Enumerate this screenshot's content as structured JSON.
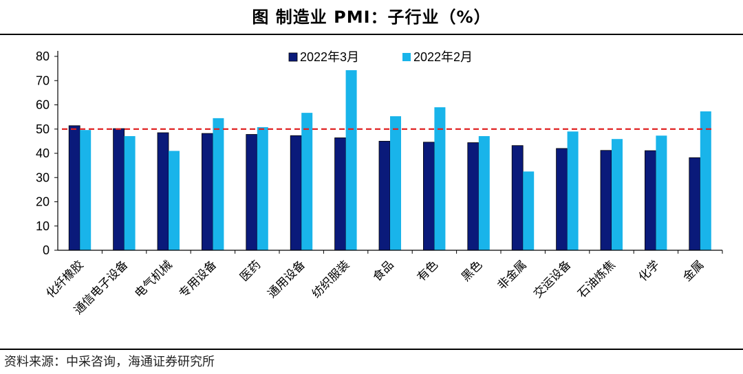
{
  "header": {
    "title": "图  制造业 PMI：子行业（%）"
  },
  "footer": {
    "source": "资料来源：中采咨询，海通证券研究所"
  },
  "chart_data": {
    "type": "bar",
    "title": "图  制造业 PMI：子行业（%）",
    "categories": [
      "化纤橡胶",
      "通信电子设备",
      "电气机械",
      "专用设备",
      "医药",
      "通用设备",
      "纺织服装",
      "食品",
      "有色",
      "黑色",
      "非金属",
      "交运设备",
      "石油炼焦",
      "化学",
      "金属"
    ],
    "series": [
      {
        "name": "2022年3月",
        "color": "#0a1a7a",
        "values": [
          51.4,
          50.2,
          48.5,
          48.2,
          47.8,
          47.3,
          46.4,
          45.0,
          44.6,
          44.4,
          43.2,
          42.0,
          41.2,
          41.1,
          38.2
        ]
      },
      {
        "name": "2022年2月",
        "color": "#19b4ea",
        "values": [
          49.6,
          47.1,
          41.0,
          54.5,
          50.8,
          56.7,
          74.3,
          55.3,
          59.0,
          47.1,
          32.5,
          49.0,
          45.9,
          47.3,
          57.3
        ]
      }
    ],
    "reference_line": {
      "value": 50,
      "color": "#e02020",
      "style": "dashed"
    },
    "yticks": [
      0,
      10,
      20,
      30,
      40,
      50,
      60,
      70,
      80
    ],
    "ylim": [
      0,
      80
    ],
    "xlabel": "",
    "ylabel": "",
    "legend": "top-center"
  }
}
